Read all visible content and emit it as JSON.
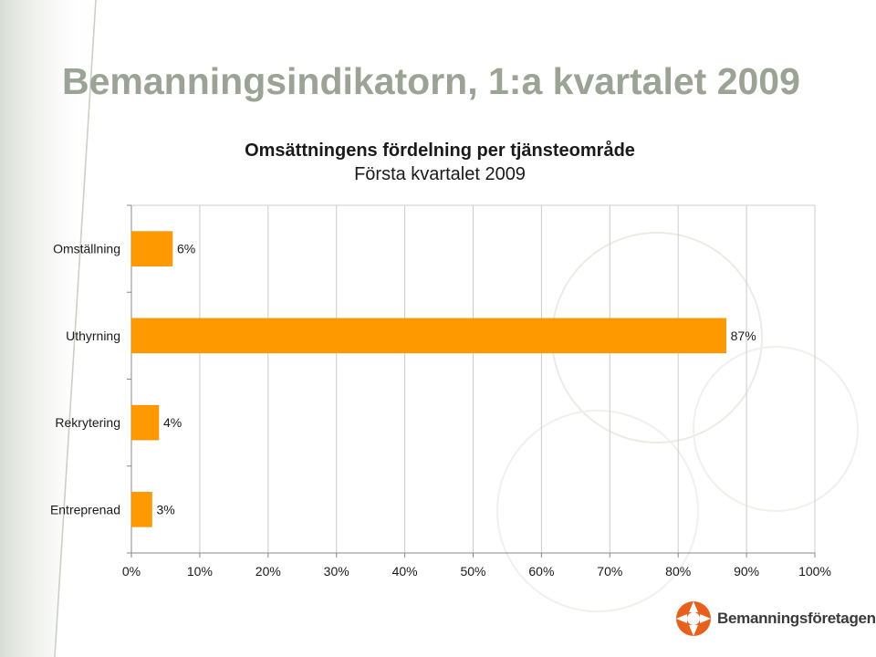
{
  "slide": {
    "title": "Bemanningsindikatorn, 1:a kvartalet 2009"
  },
  "logo": {
    "text": "Bemanningsföretagen",
    "icon": "bemanningsforetagen-logo-icon",
    "color": "#e8601c"
  },
  "colors": {
    "bar": "#ff9900",
    "bar_stroke": "#e68a00",
    "grid": "#cccccc",
    "title": "#9aa394"
  },
  "chart_data": {
    "type": "bar",
    "orientation": "horizontal",
    "title": "Omsättningens fördelning per tjänsteområde",
    "subtitle": "Första kvartalet 2009",
    "categories": [
      "Omställning",
      "Uthyrning",
      "Rekrytering",
      "Entreprenad"
    ],
    "values": [
      6,
      87,
      4,
      3
    ],
    "value_labels": [
      "6%",
      "87%",
      "4%",
      "3%"
    ],
    "xlim": [
      0,
      100
    ],
    "ticks": [
      0,
      10,
      20,
      30,
      40,
      50,
      60,
      70,
      80,
      90,
      100
    ],
    "tick_labels": [
      "0%",
      "10%",
      "20%",
      "30%",
      "40%",
      "50%",
      "60%",
      "70%",
      "80%",
      "90%",
      "100%"
    ],
    "grid": true,
    "legend": "none"
  }
}
